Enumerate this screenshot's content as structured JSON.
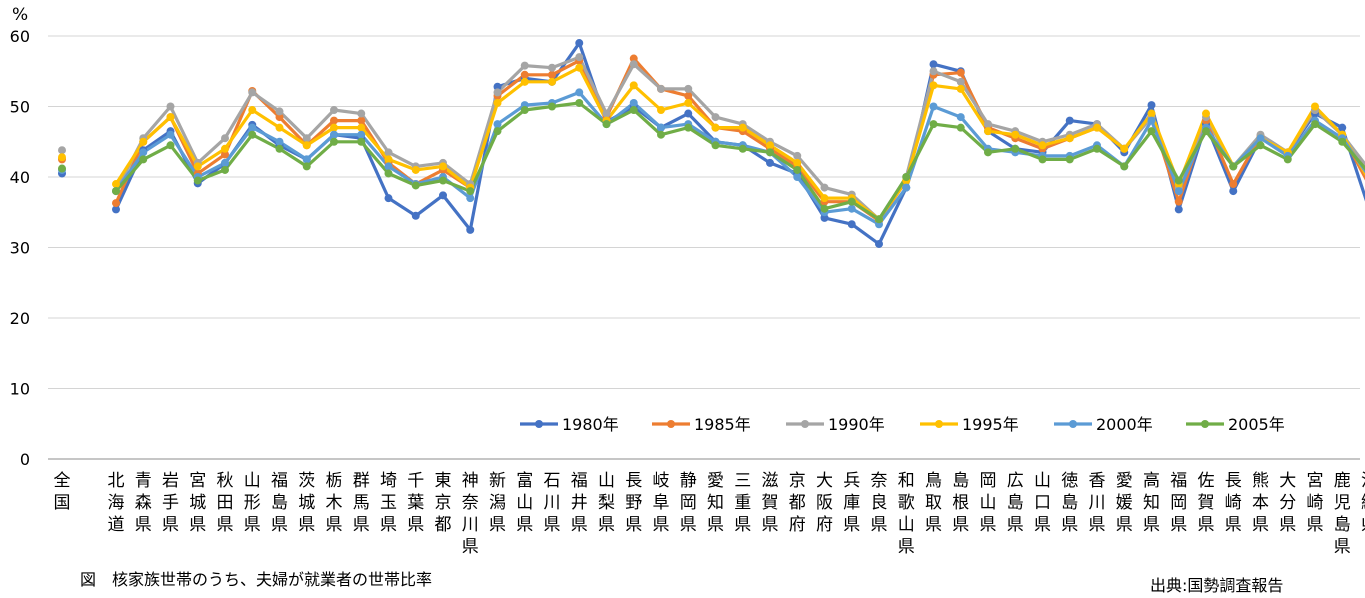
{
  "caption": "図　核家族世帯のうち、夫婦が就業者の世帯比率",
  "source": "出典:国勢調査報告",
  "chart_data": {
    "type": "line",
    "ylabel": "%",
    "ylim": [
      0,
      60
    ],
    "yticks": [
      0,
      10,
      20,
      30,
      40,
      50,
      60
    ],
    "grid": true,
    "legend_position": "bottom-right",
    "categories": [
      "全国",
      "北海道",
      "青森県",
      "岩手県",
      "宮城県",
      "秋田県",
      "山形県",
      "福島県",
      "茨城県",
      "栃木県",
      "群馬県",
      "埼玉県",
      "千葉県",
      "東京都",
      "神奈川県",
      "新潟県",
      "富山県",
      "石川県",
      "福井県",
      "山梨県",
      "長野県",
      "岐阜県",
      "静岡県",
      "愛知県",
      "三重県",
      "滋賀県",
      "京都府",
      "大阪府",
      "兵庫県",
      "奈良県",
      "和歌山県",
      "鳥取県",
      "島根県",
      "岡山県",
      "広島県",
      "山口県",
      "徳島県",
      "香川県",
      "愛媛県",
      "高知県",
      "福岡県",
      "佐賀県",
      "長崎県",
      "熊本県",
      "大分県",
      "宮崎県",
      "鹿児島県",
      "沖縄県"
    ],
    "series": [
      {
        "name": "1980年",
        "color": "#4472C4",
        "values": [
          40.5,
          35.4,
          43.8,
          46.5,
          39.1,
          41.9,
          47.4,
          44.5,
          42.5,
          46.0,
          45.5,
          37.0,
          34.5,
          37.4,
          32.5,
          52.8,
          54.0,
          53.5,
          59.0,
          47.8,
          50.0,
          47.0,
          49.0,
          45.0,
          44.5,
          42.0,
          40.5,
          34.2,
          33.3,
          30.5,
          38.5,
          56.0,
          55.0,
          46.5,
          44.0,
          43.5,
          48.0,
          47.5,
          43.5,
          50.2,
          35.4,
          47.5,
          38.0,
          45.5,
          43.5,
          49.0,
          47.0,
          35.3
        ]
      },
      {
        "name": "1985年",
        "color": "#ED7D31",
        "values": [
          42.5,
          36.3,
          45.0,
          48.5,
          40.5,
          43.2,
          52.2,
          48.5,
          44.5,
          48.0,
          48.0,
          42.0,
          39.0,
          41.0,
          38.5,
          51.5,
          54.5,
          54.5,
          56.5,
          48.5,
          56.8,
          52.5,
          51.5,
          47.0,
          46.5,
          44.0,
          41.5,
          36.5,
          36.5,
          33.8,
          39.5,
          54.5,
          54.8,
          47.0,
          45.5,
          44.0,
          45.5,
          47.0,
          44.0,
          48.5,
          36.5,
          48.0,
          39.0,
          45.8,
          43.5,
          49.5,
          46.0,
          38.8
        ]
      },
      {
        "name": "1990年",
        "color": "#A5A5A5",
        "values": [
          43.8,
          38.0,
          45.5,
          50.0,
          42.0,
          45.5,
          52.0,
          49.3,
          45.5,
          49.5,
          49.0,
          43.5,
          41.5,
          42.0,
          39.0,
          52.0,
          55.8,
          55.5,
          57.0,
          49.0,
          56.0,
          52.5,
          52.5,
          48.5,
          47.5,
          45.0,
          43.0,
          38.5,
          37.5,
          34.0,
          40.0,
          55.0,
          53.5,
          47.5,
          46.5,
          45.0,
          46.0,
          47.5,
          44.0,
          48.5,
          38.5,
          48.5,
          41.5,
          46.0,
          43.5,
          49.5,
          46.0,
          41.0
        ]
      },
      {
        "name": "1995年",
        "color": "#FFC000",
        "values": [
          42.8,
          39.0,
          45.0,
          48.5,
          41.5,
          44.0,
          49.5,
          47.0,
          44.5,
          47.0,
          47.0,
          42.5,
          41.0,
          41.5,
          38.5,
          50.5,
          53.5,
          53.5,
          55.5,
          48.0,
          53.0,
          49.5,
          50.5,
          47.0,
          47.0,
          44.5,
          42.0,
          37.0,
          37.0,
          34.0,
          39.5,
          53.0,
          52.5,
          46.5,
          46.0,
          44.5,
          45.5,
          47.0,
          44.0,
          49.0,
          39.0,
          49.0,
          41.5,
          45.5,
          43.5,
          50.0,
          46.0,
          39.5
        ]
      },
      {
        "name": "2000年",
        "color": "#5B9BD5",
        "values": [
          41.0,
          38.0,
          43.5,
          46.0,
          40.0,
          42.0,
          47.0,
          45.0,
          42.5,
          46.0,
          46.0,
          41.5,
          39.0,
          40.0,
          37.0,
          47.5,
          50.2,
          50.5,
          52.0,
          47.5,
          50.5,
          47.0,
          47.5,
          45.0,
          44.5,
          43.5,
          40.0,
          35.0,
          35.5,
          33.3,
          38.5,
          50.0,
          48.5,
          44.0,
          43.5,
          43.0,
          43.0,
          44.5,
          41.5,
          48.0,
          38.0,
          47.0,
          41.5,
          45.5,
          43.0,
          48.0,
          45.5,
          40.0
        ]
      },
      {
        "name": "2005年",
        "color": "#70AD47",
        "values": [
          41.2,
          38.0,
          42.5,
          44.5,
          39.5,
          41.0,
          46.0,
          44.0,
          41.5,
          45.0,
          45.0,
          40.5,
          38.8,
          39.5,
          38.0,
          46.5,
          49.5,
          50.0,
          50.5,
          47.5,
          49.5,
          46.0,
          47.0,
          44.5,
          44.0,
          43.5,
          41.0,
          35.5,
          36.5,
          34.0,
          40.0,
          47.5,
          47.0,
          43.5,
          44.0,
          42.5,
          42.5,
          44.0,
          41.5,
          46.5,
          39.5,
          46.5,
          41.5,
          44.5,
          42.5,
          47.5,
          45.0,
          40.5
        ]
      }
    ]
  }
}
